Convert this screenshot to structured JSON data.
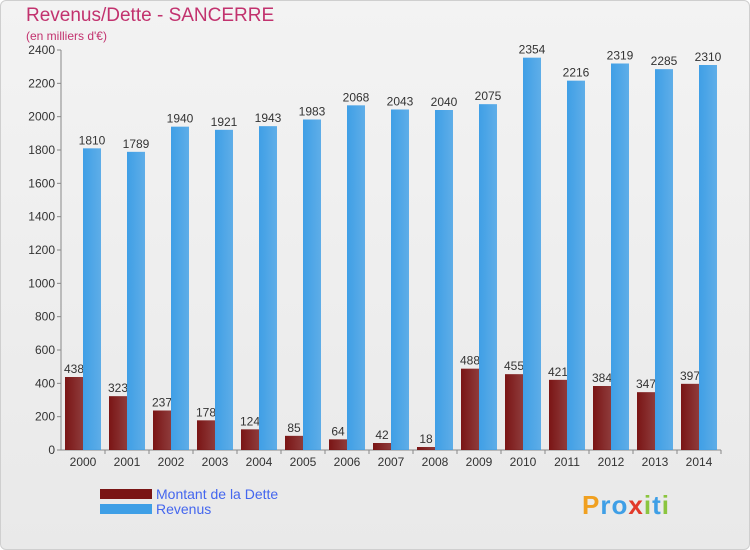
{
  "chart_data": {
    "type": "bar",
    "title": "Revenus/Dette - SANCERRE",
    "subtitle": "(en milliers d'€)",
    "categories": [
      "2000",
      "2001",
      "2002",
      "2003",
      "2004",
      "2005",
      "2006",
      "2007",
      "2008",
      "2009",
      "2010",
      "2011",
      "2012",
      "2013",
      "2014"
    ],
    "series": [
      {
        "name": "Montant de la Dette",
        "color": "#7a1515",
        "values": [
          438,
          323,
          237,
          178,
          124,
          85,
          64,
          42,
          18,
          488,
          455,
          421,
          384,
          347,
          397
        ]
      },
      {
        "name": "Revenus",
        "color": "#3f9fe6",
        "values": [
          1810,
          1789,
          1940,
          1921,
          1943,
          1983,
          2068,
          2043,
          2040,
          2075,
          2354,
          2216,
          2319,
          2285,
          2310
        ]
      }
    ],
    "ylim": [
      0,
      2400
    ],
    "yticks": [
      0,
      200,
      400,
      600,
      800,
      1000,
      1200,
      1400,
      1600,
      1800,
      2000,
      2200,
      2400
    ],
    "grid": false,
    "legend": "bottom-left"
  },
  "colors": {
    "title": "#c2326e",
    "legend_text": "#4466ee"
  },
  "logo": {
    "letters": [
      "P",
      "r",
      "o",
      "x",
      "i",
      "t",
      "i"
    ],
    "colors": [
      "#f0a020",
      "#3f9fe6",
      "#3f9fe6",
      "#e23a2a",
      "#8bc53f",
      "#3f9fe6",
      "#8bc53f"
    ]
  }
}
